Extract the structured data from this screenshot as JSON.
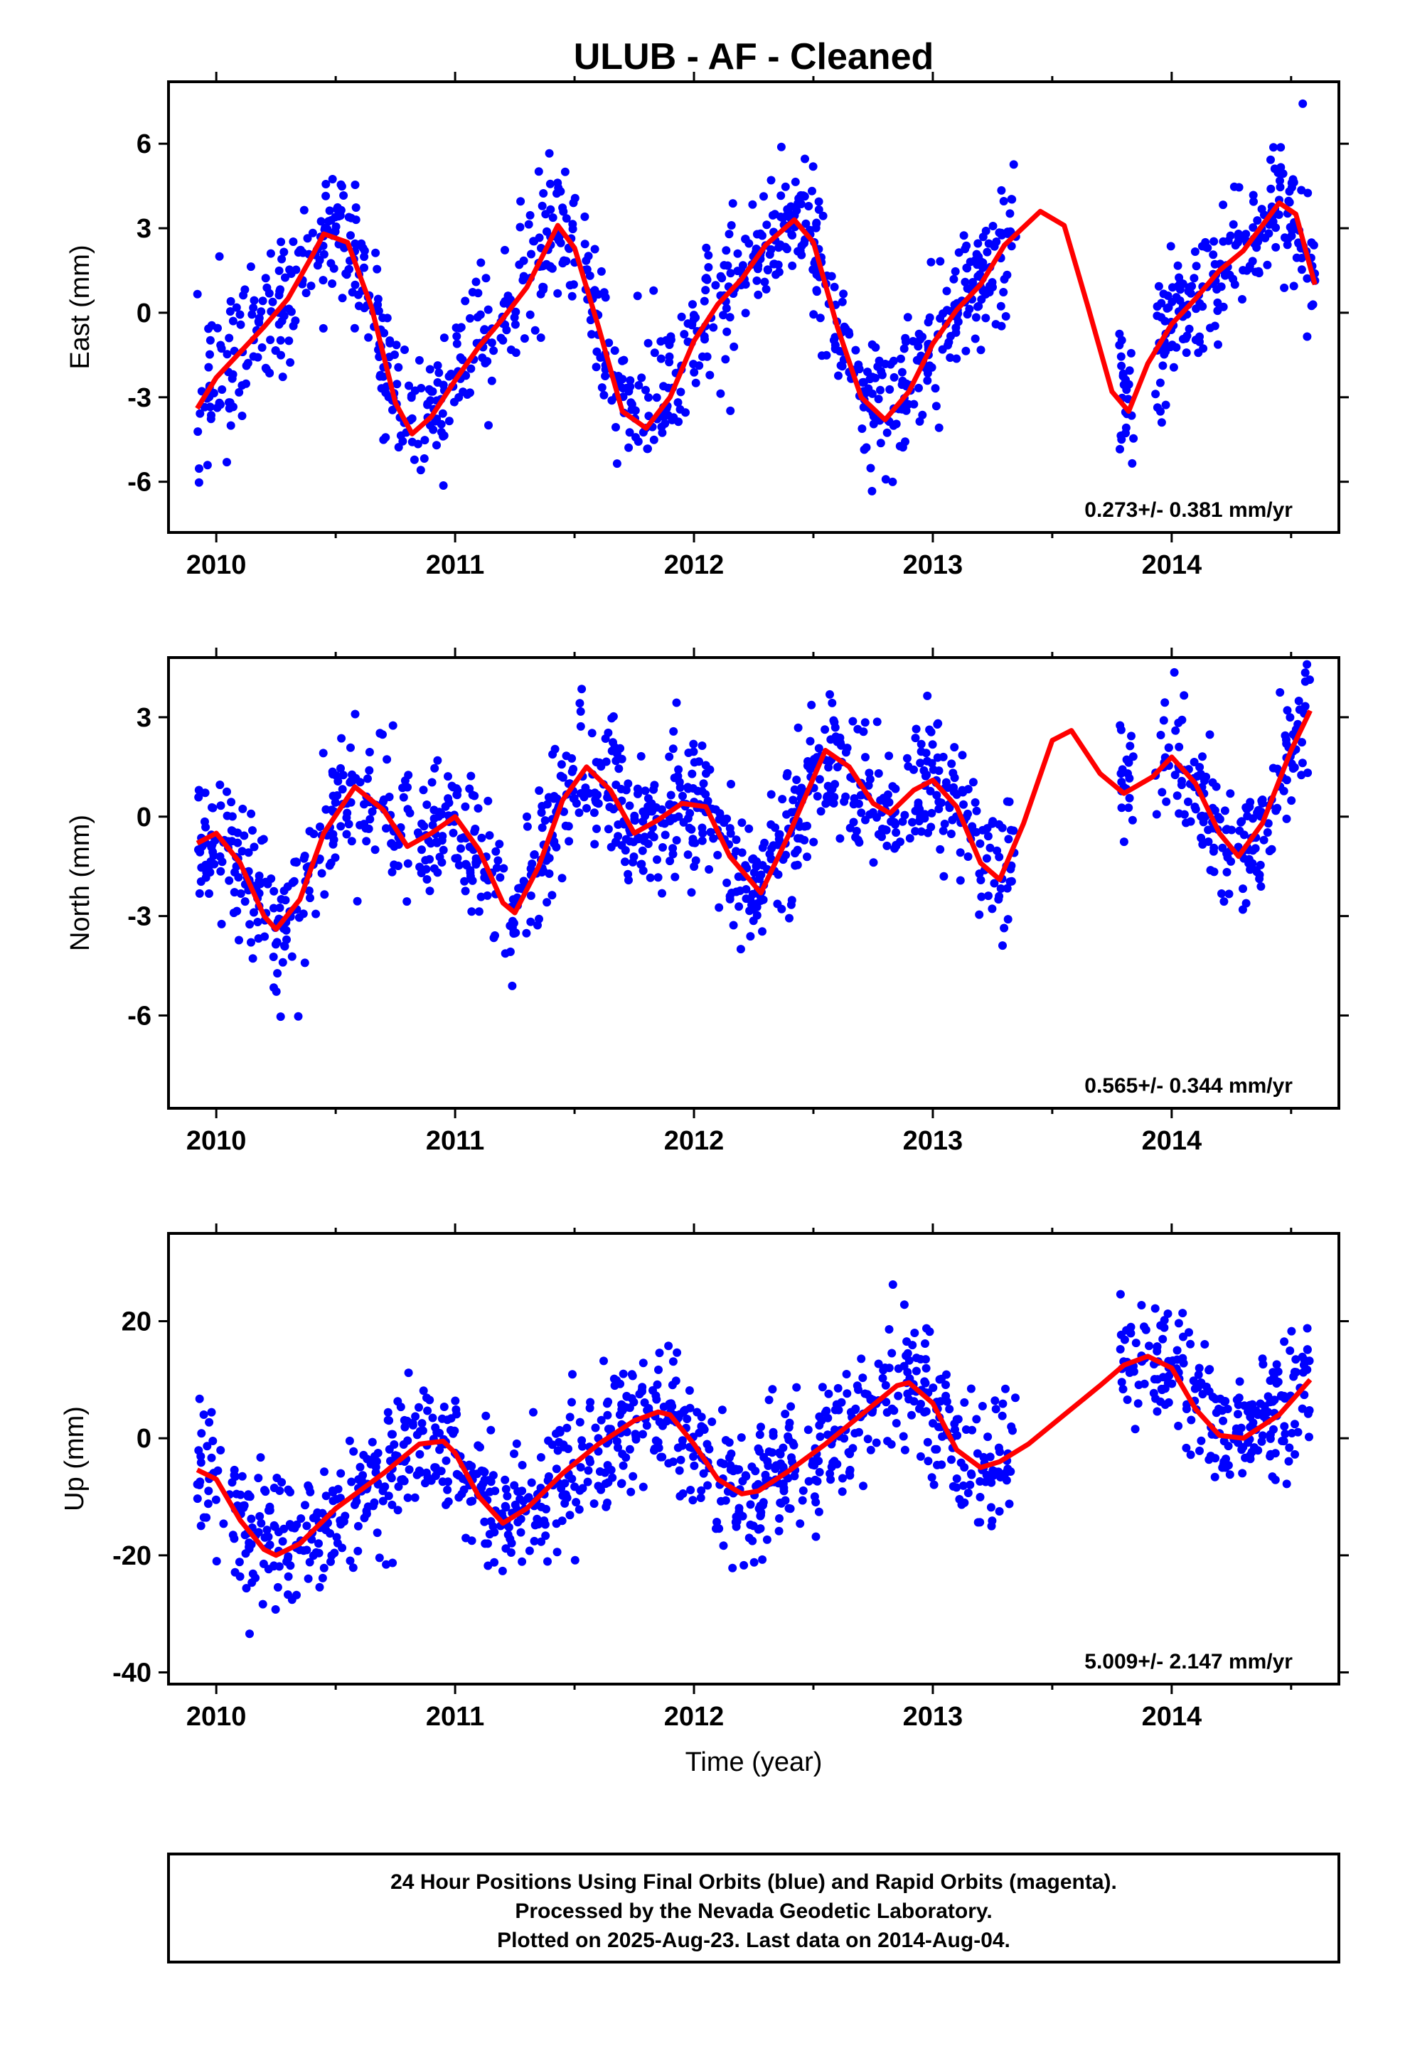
{
  "title": "ULUB  - AF - Cleaned",
  "colors": {
    "points": "#0000ff",
    "trend": "#ff0000",
    "frame": "#000000"
  },
  "chart_data": [
    {
      "type": "scatter",
      "ylabel": "East (mm)",
      "xlim": [
        2009.8,
        2014.7
      ],
      "ylim": [
        -7.8,
        8.2
      ],
      "xticks": [
        2010,
        2011,
        2012,
        2013,
        2014
      ],
      "yticks": [
        -6,
        -3,
        0,
        3,
        6
      ],
      "rate": "0.273+/- 0.381 mm/yr",
      "gaps": [
        [
          2013.35,
          2013.78
        ],
        [
          2013.84,
          2013.93
        ]
      ],
      "fit": {
        "x": [
          2009.92,
          2010.0,
          2010.1,
          2010.2,
          2010.3,
          2010.4,
          2010.45,
          2010.55,
          2010.65,
          2010.75,
          2010.82,
          2010.9,
          2011.0,
          2011.1,
          2011.2,
          2011.3,
          2011.43,
          2011.5,
          2011.6,
          2011.7,
          2011.8,
          2011.9,
          2012.0,
          2012.1,
          2012.2,
          2012.3,
          2012.42,
          2012.5,
          2012.6,
          2012.7,
          2012.8,
          2012.9,
          2013.0,
          2013.1,
          2013.2,
          2013.3,
          2013.45,
          2013.55,
          2013.65,
          2013.75,
          2013.82,
          2013.9,
          2014.0,
          2014.1,
          2014.2,
          2014.3,
          2014.45,
          2014.52,
          2014.6
        ],
        "y": [
          -3.4,
          -2.3,
          -1.4,
          -0.5,
          0.5,
          2.0,
          2.8,
          2.5,
          0.2,
          -3.2,
          -4.3,
          -3.7,
          -2.4,
          -1.2,
          -0.2,
          0.9,
          3.1,
          2.3,
          -0.5,
          -3.5,
          -4.1,
          -3.0,
          -1.0,
          0.3,
          1.2,
          2.4,
          3.3,
          2.5,
          -0.5,
          -3.0,
          -3.8,
          -2.8,
          -1.1,
          0.1,
          1.0,
          2.4,
          3.6,
          3.1,
          0.2,
          -2.8,
          -3.5,
          -1.8,
          -0.4,
          0.5,
          1.5,
          2.2,
          3.9,
          3.5,
          1.0
        ]
      }
    },
    {
      "type": "scatter",
      "ylabel": "North (mm)",
      "xlim": [
        2009.8,
        2014.7
      ],
      "ylim": [
        -8.8,
        4.8
      ],
      "xticks": [
        2010,
        2011,
        2012,
        2013,
        2014
      ],
      "yticks": [
        -6,
        -3,
        0,
        3
      ],
      "rate": "0.565+/- 0.344 mm/yr",
      "gaps": [
        [
          2013.35,
          2013.78
        ],
        [
          2013.84,
          2013.93
        ]
      ],
      "fit": {
        "x": [
          2009.92,
          2010.0,
          2010.1,
          2010.2,
          2010.25,
          2010.35,
          2010.45,
          2010.58,
          2010.7,
          2010.8,
          2010.9,
          2011.0,
          2011.1,
          2011.2,
          2011.25,
          2011.35,
          2011.45,
          2011.55,
          2011.65,
          2011.75,
          2011.85,
          2011.95,
          2012.05,
          2012.15,
          2012.28,
          2012.4,
          2012.55,
          2012.65,
          2012.75,
          2012.82,
          2012.92,
          2013.0,
          2013.1,
          2013.2,
          2013.28,
          2013.38,
          2013.5,
          2013.58,
          2013.7,
          2013.8,
          2013.92,
          2014.0,
          2014.1,
          2014.2,
          2014.28,
          2014.38,
          2014.5,
          2014.58
        ],
        "y": [
          -0.8,
          -0.5,
          -1.4,
          -3.0,
          -3.4,
          -2.5,
          -0.5,
          0.9,
          0.2,
          -0.9,
          -0.5,
          0.0,
          -1.0,
          -2.6,
          -2.9,
          -1.5,
          0.5,
          1.5,
          0.8,
          -0.5,
          -0.1,
          0.4,
          0.3,
          -1.2,
          -2.3,
          -0.5,
          2.0,
          1.5,
          0.4,
          0.1,
          0.8,
          1.1,
          0.3,
          -1.4,
          -1.9,
          -0.2,
          2.3,
          2.6,
          1.3,
          0.7,
          1.2,
          1.8,
          1.0,
          -0.5,
          -1.2,
          -0.2,
          2.0,
          3.2
        ]
      }
    },
    {
      "type": "scatter",
      "ylabel": "Up (mm)",
      "xlabel": "Time (year)",
      "xlim": [
        2009.8,
        2014.7
      ],
      "ylim": [
        -42,
        35
      ],
      "xticks": [
        2010,
        2011,
        2012,
        2013,
        2014
      ],
      "yticks": [
        -40,
        -20,
        0,
        20
      ],
      "rate": "5.009+/- 2.147 mm/yr",
      "gaps": [
        [
          2013.35,
          2013.78
        ]
      ],
      "fit": {
        "x": [
          2009.92,
          2010.0,
          2010.1,
          2010.2,
          2010.25,
          2010.35,
          2010.5,
          2010.7,
          2010.85,
          2010.95,
          2011.0,
          2011.1,
          2011.2,
          2011.3,
          2011.45,
          2011.6,
          2011.75,
          2011.85,
          2011.9,
          2012.0,
          2012.1,
          2012.2,
          2012.27,
          2012.4,
          2012.55,
          2012.7,
          2012.85,
          2012.9,
          2013.0,
          2013.1,
          2013.2,
          2013.28,
          2013.4,
          2013.55,
          2013.7,
          2013.8,
          2013.9,
          2014.0,
          2014.1,
          2014.2,
          2014.3,
          2014.45,
          2014.58
        ],
        "y": [
          -5.4,
          -7.0,
          -14.0,
          -19.0,
          -20.0,
          -18.0,
          -12.0,
          -6.0,
          -1.0,
          -0.5,
          -2.5,
          -10.0,
          -14.5,
          -12.0,
          -6.0,
          -1.0,
          3.0,
          4.5,
          4.0,
          -1.0,
          -7.0,
          -9.5,
          -9.0,
          -5.5,
          -1.0,
          4.0,
          9.0,
          9.5,
          6.0,
          -2.0,
          -5.0,
          -4.0,
          -1.0,
          4.0,
          9.0,
          12.5,
          14.0,
          12.0,
          5.0,
          0.5,
          0.0,
          4.0,
          10.0
        ]
      }
    }
  ],
  "footer": {
    "line1": "24 Hour Positions Using Final Orbits (blue) and Rapid Orbits (magenta).",
    "line2": "Processed by the Nevada Geodetic Laboratory.",
    "line3": "Plotted on 2025-Aug-23. Last data on 2014-Aug-04."
  }
}
